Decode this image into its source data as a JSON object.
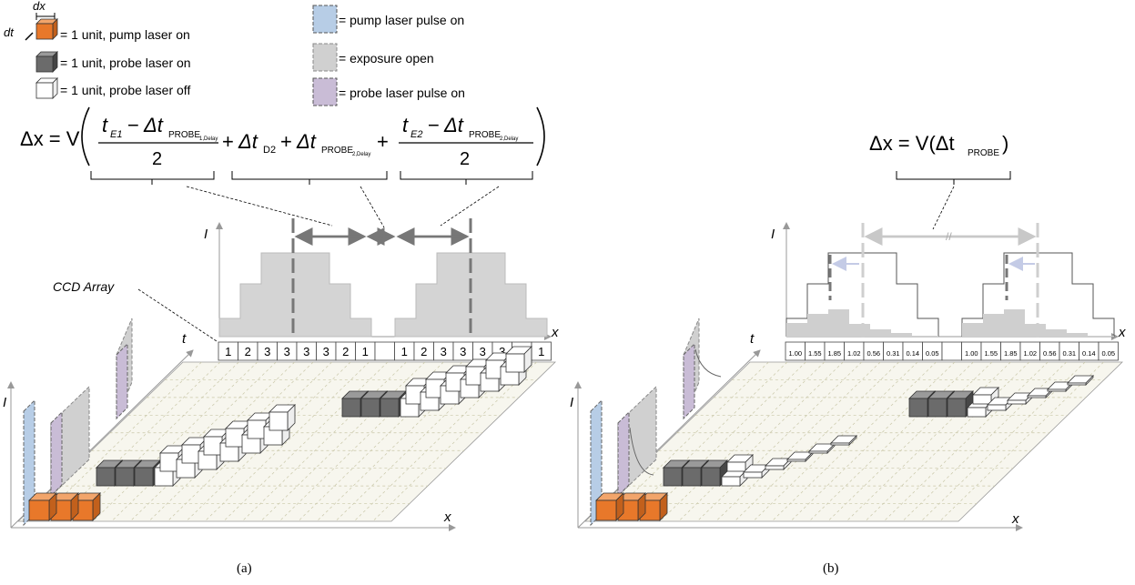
{
  "legend": {
    "dx": "dx",
    "dt": "dt",
    "pump_unit": "= 1 unit, pump laser on",
    "probe_on_unit": "= 1 unit, probe laser on",
    "probe_off_unit": "= 1 unit, probe laser off",
    "pump_pulse": "= pump laser pulse on",
    "exposure": "= exposure open",
    "probe_pulse": "= probe laser pulse on"
  },
  "equation_a": {
    "lhs": "Δx = V",
    "t_e1": "t",
    "e1_sub": "E1",
    "minus": "−",
    "delta_t": "Δt",
    "probe1_sub": "PROBE",
    "probe1_subsub": "1,Delay",
    "denom": "2",
    "plus1": "+",
    "d2_sub": "D2",
    "plus2": "+",
    "probe2_sub": "PROBE",
    "probe2_subsub": "2,Delay",
    "plus3": "+",
    "e2_sub": "E2",
    "probe3_subsub": "2,Delay"
  },
  "equation_b": {
    "lhs": "Δx = V(Δt",
    "probe_sub": "PROBE",
    "close": ")"
  },
  "panel_a": {
    "ccd_label": "CCD Array",
    "axis_I": "I",
    "axis_x": "x",
    "axis_t": "t",
    "ccd_values": [
      "1",
      "2",
      "3",
      "3",
      "3",
      "3",
      "2",
      "1",
      "",
      "1",
      "2",
      "3",
      "3",
      "3",
      "3",
      "2",
      "1"
    ],
    "caption": "(a)"
  },
  "panel_b": {
    "axis_I": "I",
    "axis_x": "x",
    "axis_t": "t",
    "ccd_values": [
      "1.00",
      "1.55",
      "1.85",
      "1.02",
      "0.56",
      "0.31",
      "0.14",
      "0.05",
      "",
      "1.00",
      "1.55",
      "1.85",
      "1.02",
      "0.56",
      "0.31",
      "0.14",
      "0.05"
    ],
    "caption": "(b)"
  },
  "colors": {
    "pump": "#e8782a",
    "probe_on": "#6b6b6b",
    "exposure": "#d0d0d0",
    "pump_pulse": "#b7cde6",
    "probe_pulse": "#c9bcd6",
    "plane": "#f7f6ee"
  }
}
